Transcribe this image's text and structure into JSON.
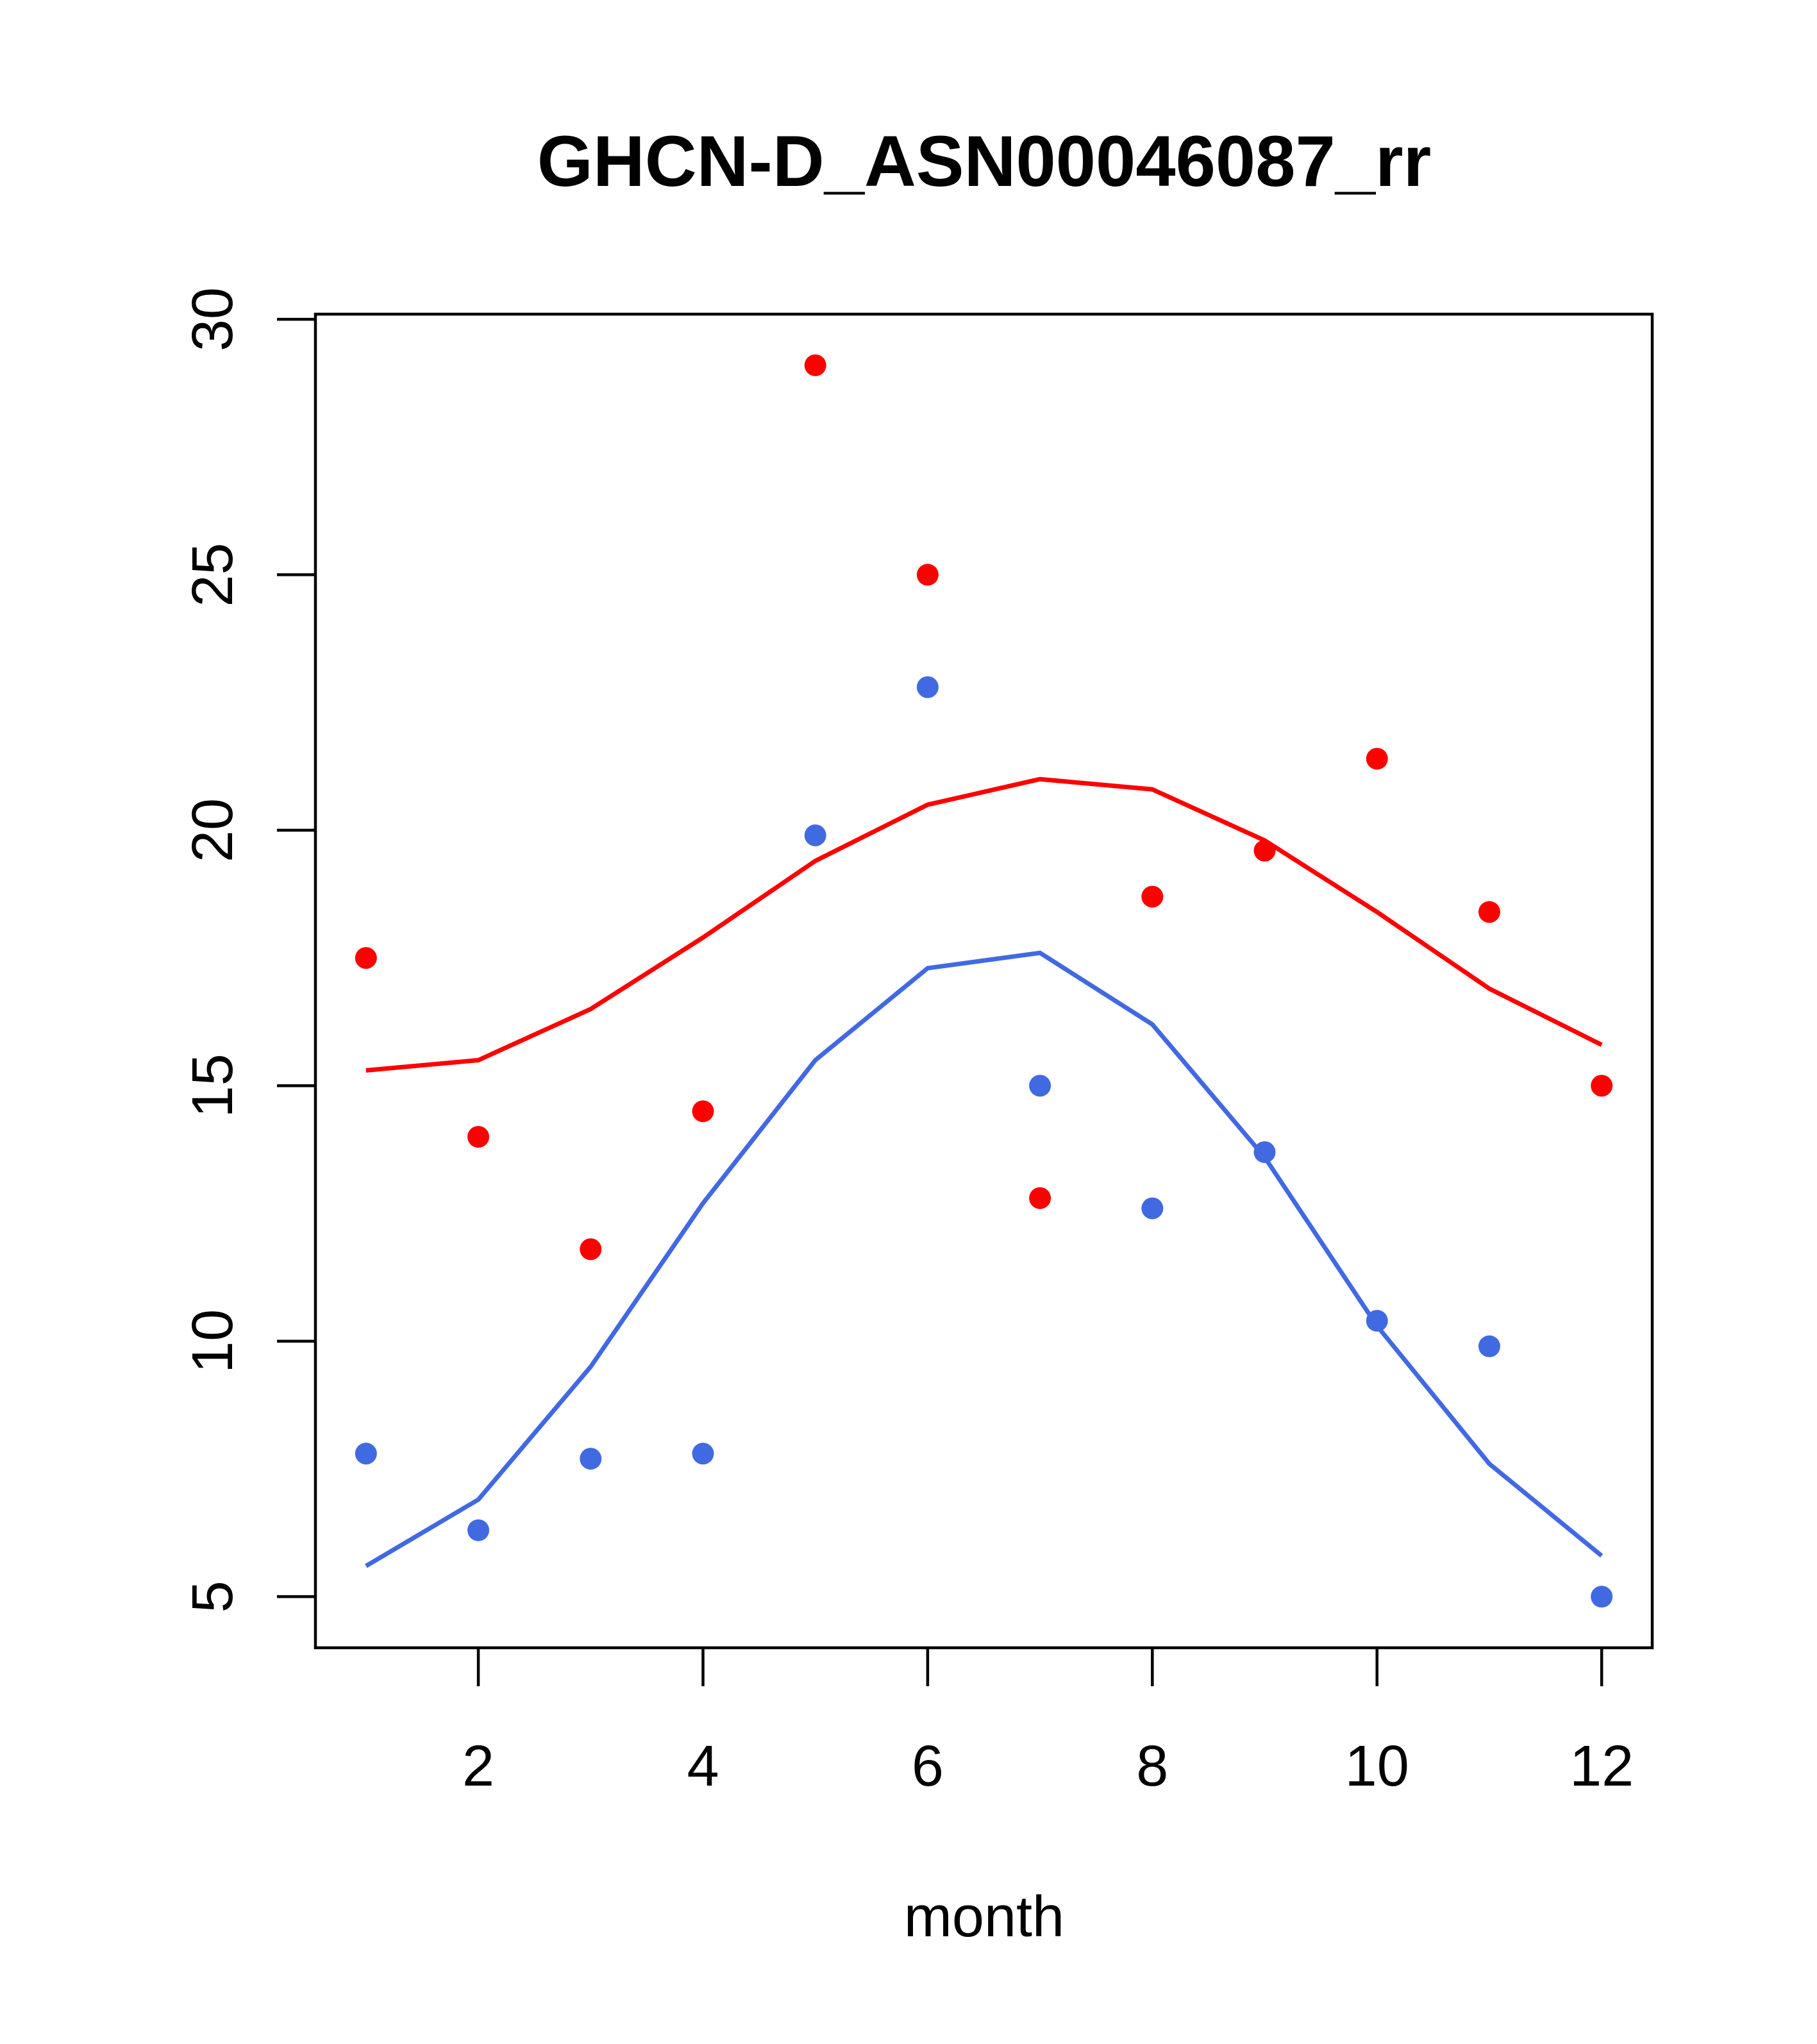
{
  "chart_data": {
    "type": "scatter",
    "title": "GHCN-D_ASN00046087_rr",
    "xlabel": "month",
    "ylabel": "",
    "xlim": [
      0.55,
      12.45
    ],
    "ylim": [
      4.0,
      30.1
    ],
    "xticks": [
      2,
      4,
      6,
      8,
      10,
      12
    ],
    "yticks": [
      5,
      10,
      15,
      20,
      25,
      30
    ],
    "grid": false,
    "legend": "none",
    "series": [
      {
        "kind": "line",
        "color": "#ff0000",
        "x": [
          1,
          2,
          3,
          4,
          5,
          6,
          7,
          8,
          9,
          10,
          11,
          12
        ],
        "y": [
          15.3,
          15.5,
          16.5,
          17.9,
          19.4,
          20.5,
          21.0,
          20.8,
          19.8,
          18.4,
          16.9,
          15.8
        ]
      },
      {
        "kind": "line",
        "color": "#4169e1",
        "x": [
          1,
          2,
          3,
          4,
          5,
          6,
          7,
          8,
          9,
          10,
          11,
          12
        ],
        "y": [
          5.6,
          6.9,
          9.5,
          12.7,
          15.5,
          17.3,
          17.6,
          16.2,
          13.6,
          10.3,
          7.6,
          5.8
        ]
      },
      {
        "kind": "points",
        "color": "#ff0000",
        "x": [
          1,
          2,
          3,
          4,
          5,
          6,
          7,
          8,
          9,
          10,
          11,
          12
        ],
        "y": [
          17.5,
          14.0,
          11.8,
          14.5,
          29.1,
          25.0,
          12.8,
          18.7,
          19.6,
          21.4,
          18.4,
          15.0
        ]
      },
      {
        "kind": "points",
        "color": "#4169e1",
        "x": [
          1,
          2,
          3,
          4,
          5,
          6,
          7,
          8,
          9,
          10,
          11,
          12
        ],
        "y": [
          7.8,
          6.3,
          7.7,
          7.8,
          19.9,
          22.8,
          15.0,
          12.6,
          13.7,
          10.4,
          9.9,
          5.0
        ]
      }
    ]
  }
}
